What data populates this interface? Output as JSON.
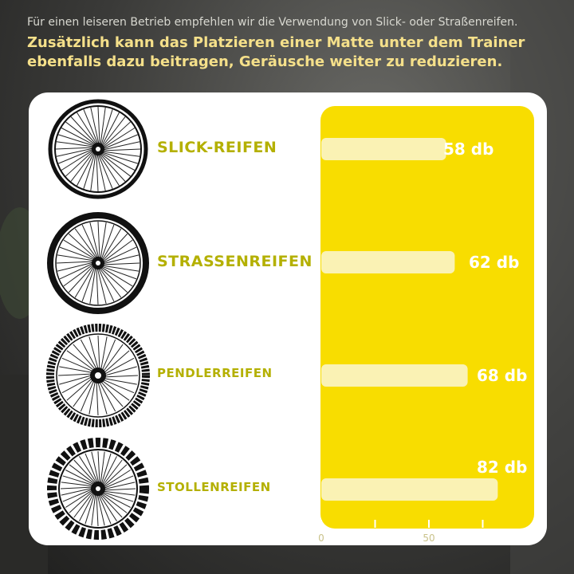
{
  "intro": {
    "line1": "Für einen leiseren Betrieb empfehlen wir die Verwendung von Slick- oder Straßenreifen.",
    "line2": "Zusätzlich kann das Platzieren einer Matte unter dem Trainer ebenfalls dazu beitragen, Geräusche weiter zu reduzieren."
  },
  "colors": {
    "accent": "#f8dd00",
    "label": "#b4b000",
    "bar": "#faf2b4",
    "value_text": "#ffffff"
  },
  "chart_data": {
    "type": "bar",
    "orientation": "horizontal",
    "categories": [
      "SLICK-REIFEN",
      "STRASSENREIFEN",
      "PENDLERREIFEN",
      "STOLLENREIFEN"
    ],
    "values": [
      58,
      62,
      68,
      82
    ],
    "value_labels": [
      "58 db",
      "62 db",
      "68 db",
      "82 db"
    ],
    "xlim": [
      0,
      90
    ],
    "x_ticks": [
      0,
      50
    ],
    "x_minor_ticks": [
      25,
      75
    ],
    "grid": false
  }
}
